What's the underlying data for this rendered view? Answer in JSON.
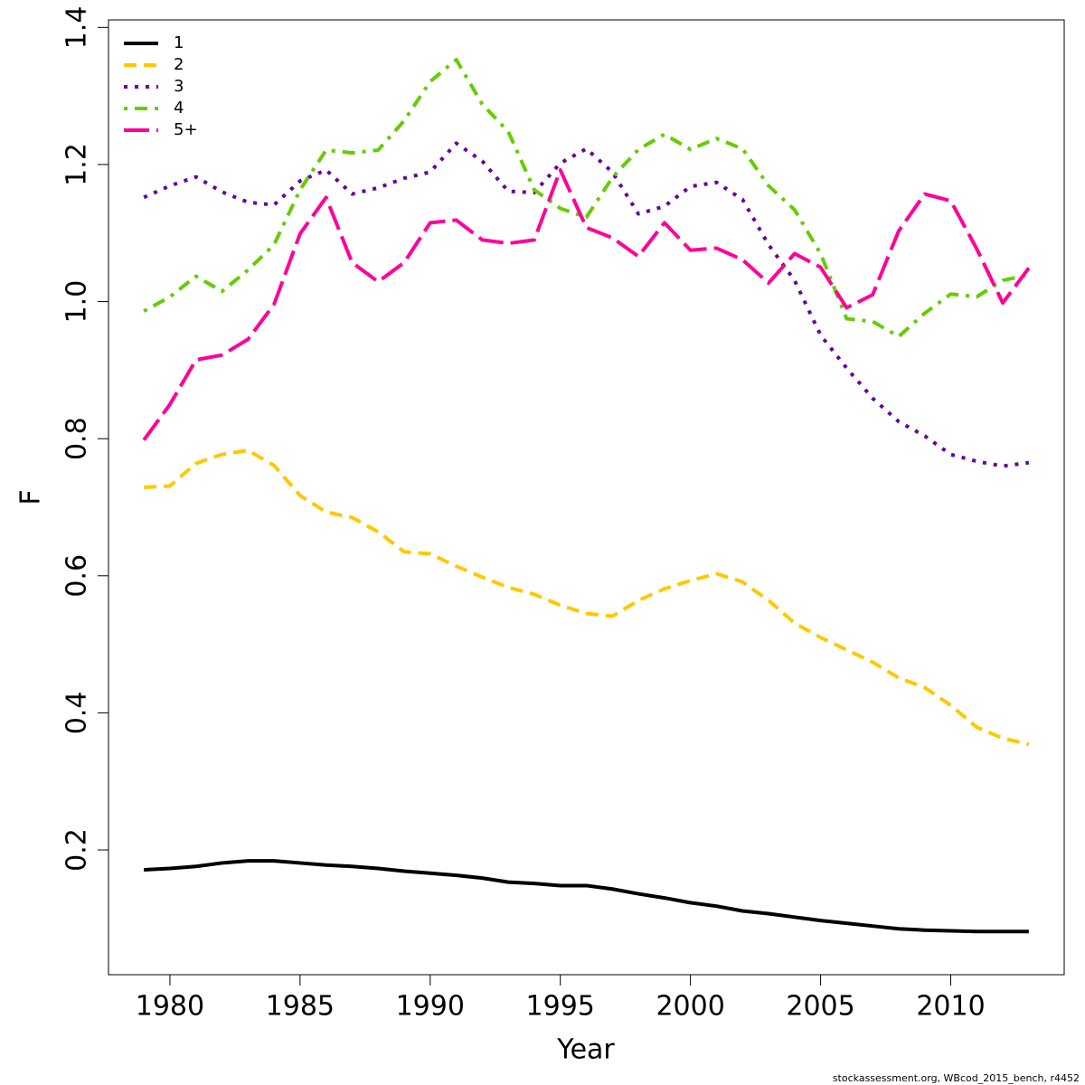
{
  "chart_data": {
    "type": "line",
    "xlabel": "Year",
    "ylabel": "F",
    "footer": "stockassessment.org, WBcod_2015_bench, r4452",
    "x": [
      1979,
      1980,
      1981,
      1982,
      1983,
      1984,
      1985,
      1986,
      1987,
      1988,
      1989,
      1990,
      1991,
      1992,
      1993,
      1994,
      1995,
      1996,
      1997,
      1998,
      1999,
      2000,
      2001,
      2002,
      2003,
      2004,
      2005,
      2006,
      2007,
      2008,
      2009,
      2010,
      2011,
      2012,
      2013
    ],
    "series": [
      {
        "name": "1",
        "color": "#000000",
        "dash": "solid",
        "values": [
          0.171,
          0.173,
          0.176,
          0.181,
          0.184,
          0.184,
          0.181,
          0.178,
          0.176,
          0.173,
          0.169,
          0.166,
          0.163,
          0.159,
          0.153,
          0.151,
          0.148,
          0.148,
          0.143,
          0.136,
          0.13,
          0.123,
          0.118,
          0.111,
          0.107,
          0.102,
          0.097,
          0.093,
          0.089,
          0.085,
          0.083,
          0.082,
          0.081,
          0.081,
          0.081
        ]
      },
      {
        "name": "2",
        "color": "#ffc800",
        "dash": "dashed",
        "values": [
          0.729,
          0.731,
          0.764,
          0.777,
          0.783,
          0.761,
          0.717,
          0.693,
          0.685,
          0.664,
          0.635,
          0.632,
          0.614,
          0.598,
          0.583,
          0.573,
          0.557,
          0.545,
          0.541,
          0.564,
          0.581,
          0.593,
          0.603,
          0.591,
          0.564,
          0.531,
          0.51,
          0.492,
          0.474,
          0.451,
          0.437,
          0.411,
          0.379,
          0.363,
          0.354
        ]
      },
      {
        "name": "3",
        "color": "#660099",
        "dash": "dotted",
        "values": [
          1.152,
          1.169,
          1.182,
          1.16,
          1.145,
          1.141,
          1.176,
          1.192,
          1.157,
          1.166,
          1.18,
          1.189,
          1.231,
          1.205,
          1.161,
          1.159,
          1.202,
          1.223,
          1.189,
          1.128,
          1.139,
          1.168,
          1.174,
          1.149,
          1.083,
          1.031,
          0.951,
          0.903,
          0.859,
          0.825,
          0.804,
          0.777,
          0.767,
          0.76,
          0.765
        ]
      },
      {
        "name": "4",
        "color": "#66cc00",
        "dash": "dotdash",
        "values": [
          0.986,
          1.007,
          1.037,
          1.015,
          1.046,
          1.083,
          1.163,
          1.221,
          1.217,
          1.221,
          1.264,
          1.321,
          1.353,
          1.288,
          1.248,
          1.163,
          1.136,
          1.123,
          1.181,
          1.222,
          1.244,
          1.222,
          1.238,
          1.223,
          1.169,
          1.134,
          1.07,
          0.975,
          0.971,
          0.949,
          0.983,
          1.011,
          1.007,
          1.031,
          1.039
        ]
      },
      {
        "name": "5+",
        "color": "#ff0099",
        "dash": "longdash",
        "values": [
          0.798,
          0.85,
          0.915,
          0.922,
          0.945,
          0.996,
          1.099,
          1.152,
          1.057,
          1.029,
          1.057,
          1.115,
          1.119,
          1.09,
          1.085,
          1.09,
          1.192,
          1.108,
          1.093,
          1.066,
          1.115,
          1.075,
          1.078,
          1.061,
          1.027,
          1.07,
          1.05,
          0.991,
          1.01,
          1.103,
          1.157,
          1.147,
          1.077,
          0.998,
          1.049
        ]
      }
    ],
    "xlim": [
      1977.64,
      2014.36
    ],
    "xticks": [
      1980,
      1985,
      1990,
      1995,
      2000,
      2005,
      2010
    ],
    "ylim": [
      0.018,
      1.411
    ],
    "yticks": [
      0.2,
      0.4,
      0.6,
      0.8,
      {
        "value": 1,
        "label": "1.0"
      },
      1.2,
      1.4
    ],
    "legend": "top-left",
    "grid": false
  }
}
